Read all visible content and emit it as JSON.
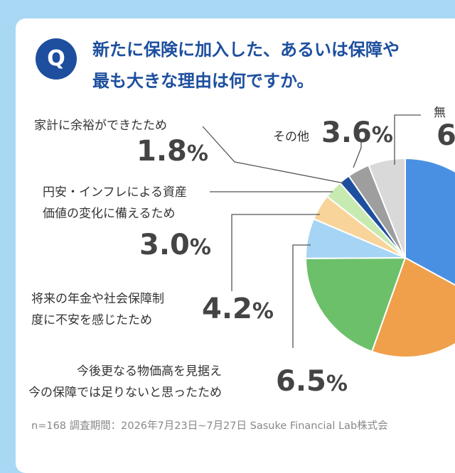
{
  "question": {
    "badge": "Q",
    "line1": "新たに保険に加入した、あるいは保障や",
    "line2": "最も大きな理由は何ですか。"
  },
  "labels": {
    "household": "家計に余裕ができたため",
    "household_pct": "1.8",
    "other": "その他",
    "other_pct": "3.6",
    "inflation_1": "円安・インフレによる資産",
    "inflation_2": "価値の変化に備えるため",
    "inflation_pct": "3.0",
    "pension_1": "将来の年金や社会保障制",
    "pension_2": "度に不安を感じたため",
    "pension_pct": "4.2",
    "prices_1": "今後更なる物価高を見据え",
    "prices_2": "今の保障では足りないと思ったため",
    "prices_pct": "6.5",
    "none_partial": "無",
    "none_pct_partial": "6",
    "percent_sign": "%"
  },
  "footer": "n=168 調査期間：2026年7月23日~7月27日 Sasuke Financial Lab株式会",
  "chart_data": {
    "type": "pie",
    "n": 168,
    "slices": [
      {
        "label": "",
        "value": null,
        "color": "#4a90e2"
      },
      {
        "label": "",
        "value": null,
        "color": "#f0a04b"
      },
      {
        "label": "",
        "value": null,
        "color": "#6cc06a"
      },
      {
        "label": "今後更なる物価高を見据え今の保障では足りないと思ったため",
        "value": 6.5,
        "color": "#a6d4f5"
      },
      {
        "label": "将来の年金や社会保障制度に不安を感じたため",
        "value": 4.2,
        "color": "#f8d49a"
      },
      {
        "label": "円安・インフレによる資産価値の変化に備えるため",
        "value": 3.0,
        "color": "#c7eab0"
      },
      {
        "label": "家計に余裕ができたため",
        "value": 1.8,
        "color": "#1d4f9e"
      },
      {
        "label": "その他",
        "value": 3.6,
        "color": "#9e9e9e"
      },
      {
        "label": "無",
        "value": 6.0,
        "color": "#d9d9d9"
      }
    ]
  }
}
